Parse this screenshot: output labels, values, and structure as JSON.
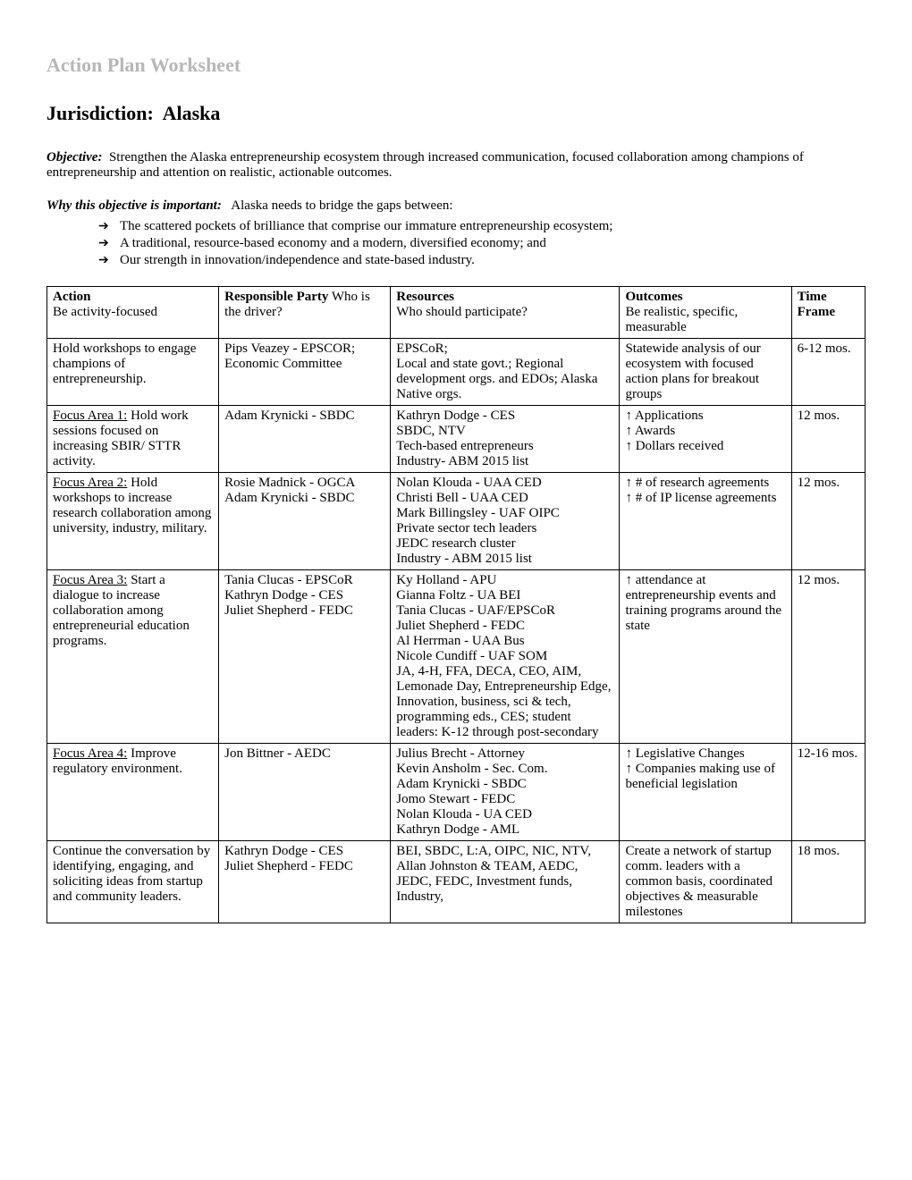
{
  "title": "Action Plan Worksheet",
  "jurisdiction_label": "Jurisdiction:",
  "jurisdiction_value": "Alaska",
  "objective_label": "Objective:",
  "objective_text": "Strengthen the Alaska entrepreneurship ecosystem through increased communication, focused collaboration among champions of entrepreneurship and attention on realistic, actionable outcomes.",
  "why_label": "Why this objective is important:",
  "why_intro": "Alaska needs to bridge the gaps between:",
  "why_bullets": [
    "The scattered pockets of brilliance that comprise our immature entrepreneurship ecosystem;",
    "A traditional, resource-based economy and a modern, diversified economy; and",
    "Our strength in innovation/independence and state-based industry."
  ],
  "headers": {
    "action_bold": "Action",
    "action_sub": "Be activity-focused",
    "resp_bold": "Responsible Party",
    "resp_sub": " Who is the driver?",
    "resources_bold": "Resources",
    "resources_sub": "Who should participate?",
    "outcomes_bold": "Outcomes",
    "outcomes_sub": "Be realistic, specific, measurable",
    "time_bold": "Time Frame"
  },
  "rows": [
    {
      "action_prefix": "",
      "action_rest": "Hold workshops to engage champions of entrepreneurship.",
      "resp": "Pips Veazey - EPSCOR; Economic Committee",
      "resources": "EPSCoR;\nLocal and state govt.; Regional development orgs. and EDOs; Alaska Native orgs.",
      "outcomes": "Statewide analysis of our ecosystem with focused action plans for breakout groups",
      "time": "6-12 mos."
    },
    {
      "action_prefix": "Focus Area 1:",
      "action_rest": " Hold work sessions focused on increasing SBIR/ STTR activity.",
      "resp": "Adam Krynicki - SBDC",
      "resources": "Kathryn Dodge - CES\nSBDC, NTV\nTech-based entrepreneurs\nIndustry- ABM 2015 list",
      "outcomes": "↑ Applications\n↑ Awards\n↑ Dollars received",
      "time": "12 mos."
    },
    {
      "action_prefix": "Focus Area 2:",
      "action_rest": " Hold workshops to increase research collaboration among university, industry, military.",
      "resp": "Rosie Madnick - OGCA\nAdam Krynicki - SBDC",
      "resources": "Nolan Klouda - UAA CED\nChristi Bell - UAA CED\nMark Billingsley - UAF OIPC\nPrivate sector tech leaders\nJEDC research cluster\nIndustry - ABM 2015 list",
      "outcomes": "↑ # of research agreements\n↑ # of IP license agreements",
      "time": "12 mos."
    },
    {
      "action_prefix": "Focus Area 3:",
      "action_rest": " Start a dialogue to increase collaboration among entrepreneurial education programs.",
      "resp": "Tania Clucas - EPSCoR\nKathryn Dodge - CES\nJuliet Shepherd - FEDC",
      "resources": "Ky Holland - APU\nGianna Foltz - UA BEI\nTania Clucas - UAF/EPSCoR\nJuliet Shepherd - FEDC\nAl Herrman - UAA Bus\nNicole Cundiff - UAF SOM\nJA, 4-H, FFA, DECA, CEO, AIM, Lemonade Day, Entrepreneurship Edge, Innovation, business, sci & tech, programming eds., CES; student leaders: K-12 through post-secondary",
      "outcomes": "↑ attendance at entrepreneurship events and training programs around the state",
      "time": "12 mos."
    },
    {
      "action_prefix": "Focus Area 4:",
      "action_rest": " Improve regulatory environment.",
      "resp": "Jon Bittner - AEDC",
      "resources": "Julius Brecht - Attorney\nKevin Ansholm - Sec. Com.\nAdam Krynicki - SBDC\nJomo Stewart - FEDC\nNolan Klouda - UA CED\nKathryn Dodge - AML",
      "outcomes": "↑ Legislative Changes\n↑ Companies making use of beneficial legislation",
      "time": "12-16 mos."
    },
    {
      "action_prefix": "",
      "action_rest": "Continue the conversation by identifying, engaging, and soliciting ideas from startup and community leaders.",
      "resp": "Kathryn Dodge - CES\nJuliet Shepherd - FEDC",
      "resources": "BEI, SBDC, L:A, OIPC, NIC, NTV,  Allan Johnston & TEAM, AEDC, JEDC, FEDC, Investment funds, Industry,",
      "outcomes": "Create a network of startup comm. leaders with a common basis, coordinated objectives & measurable milestones",
      "time": "18 mos."
    }
  ]
}
